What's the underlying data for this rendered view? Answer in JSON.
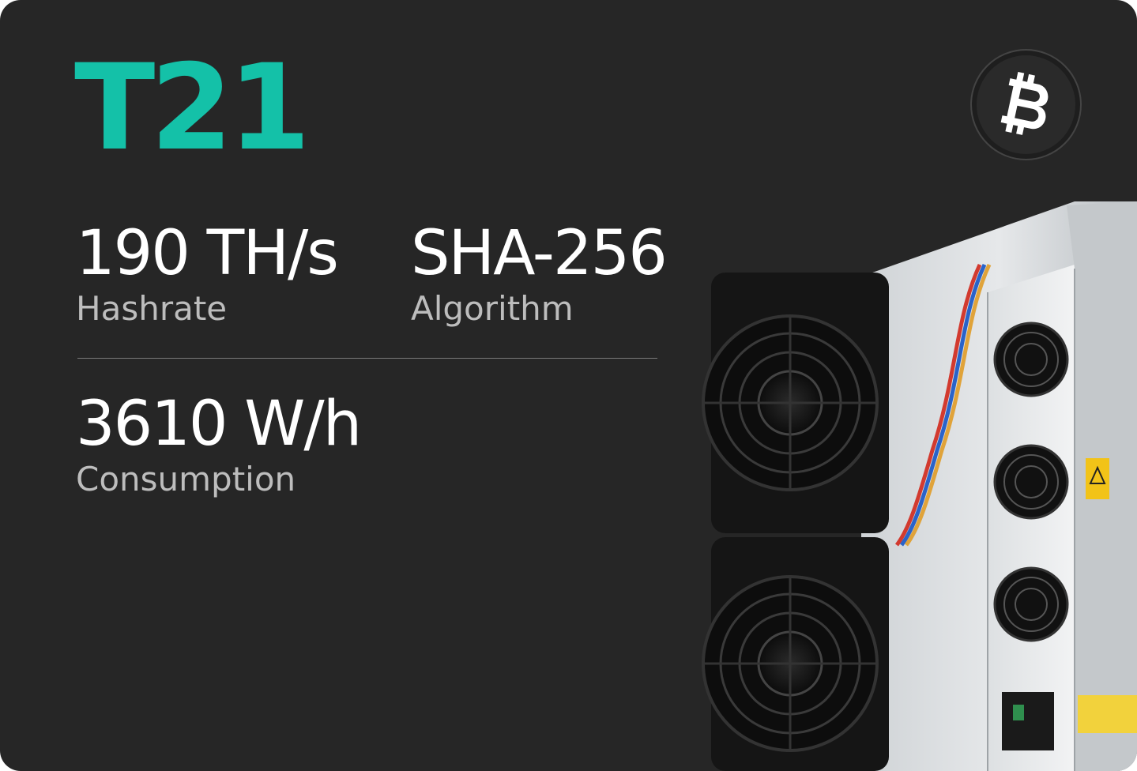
{
  "product": {
    "model": "T21",
    "accent_color": "#14c1a8"
  },
  "specs": {
    "hashrate": {
      "value": "190 TH/s",
      "label": "Hashrate"
    },
    "algorithm": {
      "value": "SHA-256",
      "label": "Algorithm"
    },
    "consumption": {
      "value": "3610 W/h",
      "label": "Consumption"
    }
  },
  "icons": {
    "coin": "bitcoin-icon",
    "device": "asic-miner-image"
  }
}
